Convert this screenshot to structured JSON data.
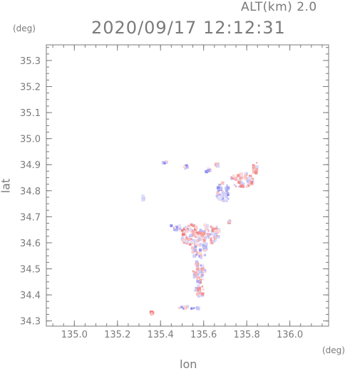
{
  "header": {
    "altitude": "ALT(km) 2.0",
    "timestamp": "2020/09/17 12:12:31"
  },
  "chart_data": {
    "type": "scatter",
    "title": "2020/09/17 12:12:31",
    "subtitle": "ALT(km) 2.0",
    "xlabel": "lon",
    "ylabel": "lat",
    "xunit": "(deg)",
    "yunit": "(deg)",
    "xlim": [
      134.87,
      136.18
    ],
    "ylim": [
      34.28,
      35.36
    ],
    "xticks": [
      135.0,
      135.2,
      135.4,
      135.6,
      135.8,
      136.0
    ],
    "xtick_labels": [
      "135.0",
      "135.2",
      "135.4",
      "135.6",
      "135.8",
      "136.0"
    ],
    "yticks": [
      34.3,
      34.4,
      34.5,
      34.6,
      34.7,
      34.8,
      34.9,
      35.0,
      35.1,
      35.2,
      35.3
    ],
    "ytick_labels": [
      "34.3",
      "34.4",
      "34.5",
      "34.6",
      "34.7",
      "34.8",
      "34.9",
      "35.0",
      "35.1",
      "35.2",
      "35.3"
    ],
    "colors": {
      "positive": "#f07878",
      "negative": "#8a8af0",
      "axis": "#7a7a7a"
    },
    "clusters": [
      {
        "lon": 135.54,
        "lat": 34.63,
        "rlon": 0.045,
        "rlat": 0.04,
        "value": 0.3
      },
      {
        "lon": 135.62,
        "lat": 34.63,
        "rlon": 0.04,
        "rlat": 0.04,
        "value": 0.1
      },
      {
        "lon": 135.58,
        "lat": 34.57,
        "rlon": 0.035,
        "rlat": 0.03,
        "value": -0.2
      },
      {
        "lon": 135.58,
        "lat": 34.49,
        "rlon": 0.03,
        "rlat": 0.04,
        "value": -0.1
      },
      {
        "lon": 135.58,
        "lat": 34.42,
        "rlon": 0.02,
        "rlat": 0.03,
        "value": 0.2
      },
      {
        "lon": 135.47,
        "lat": 34.66,
        "rlon": 0.03,
        "rlat": 0.01,
        "value": -0.4
      },
      {
        "lon": 135.66,
        "lat": 34.64,
        "rlon": 0.015,
        "rlat": 0.03,
        "value": 0.3
      },
      {
        "lon": 135.69,
        "lat": 34.79,
        "rlon": 0.03,
        "rlat": 0.04,
        "value": -0.3
      },
      {
        "lon": 135.78,
        "lat": 34.84,
        "rlon": 0.05,
        "rlat": 0.03,
        "value": 0.2
      },
      {
        "lon": 135.84,
        "lat": 34.89,
        "rlon": 0.015,
        "rlat": 0.025,
        "value": 0.4
      },
      {
        "lon": 135.52,
        "lat": 34.89,
        "rlon": 0.01,
        "rlat": 0.01,
        "value": -0.5
      },
      {
        "lon": 135.62,
        "lat": 34.88,
        "rlon": 0.01,
        "rlat": 0.01,
        "value": -0.4
      },
      {
        "lon": 135.42,
        "lat": 34.91,
        "rlon": 0.01,
        "rlat": 0.008,
        "value": -0.3
      },
      {
        "lon": 135.53,
        "lat": 34.35,
        "rlon": 0.05,
        "rlat": 0.006,
        "value": -0.3
      },
      {
        "lon": 135.36,
        "lat": 34.33,
        "rlon": 0.005,
        "rlat": 0.005,
        "value": 0.6
      },
      {
        "lon": 135.32,
        "lat": 34.77,
        "rlon": 0.005,
        "rlat": 0.01,
        "value": -0.2
      },
      {
        "lon": 135.66,
        "lat": 34.9,
        "rlon": 0.01,
        "rlat": 0.006,
        "value": 0.3
      },
      {
        "lon": 135.72,
        "lat": 34.68,
        "rlon": 0.004,
        "rlat": 0.005,
        "value": 0.3
      }
    ]
  }
}
